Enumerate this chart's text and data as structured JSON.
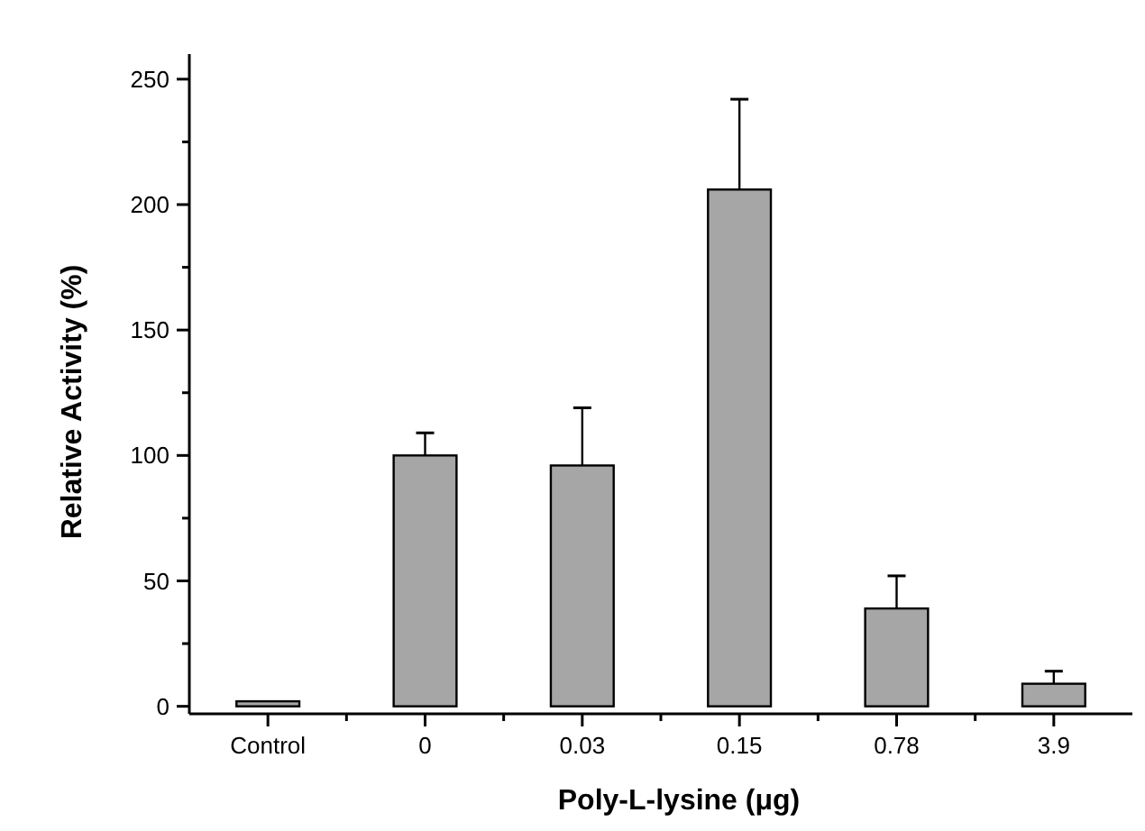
{
  "chart_data": {
    "type": "bar",
    "xlabel": "Poly-L-lysine (μg)",
    "ylabel": "Relative Activity (%)",
    "categories": [
      "Control",
      "0",
      "0.03",
      "0.15",
      "0.78",
      "3.9"
    ],
    "values": [
      2,
      100,
      96,
      206,
      39,
      9
    ],
    "errors": [
      null,
      [
        100,
        109
      ],
      [
        96,
        119
      ],
      [
        206,
        242
      ],
      [
        39,
        52
      ],
      [
        9,
        14
      ]
    ],
    "color": "#a6a6a6",
    "ylim": [
      -3,
      260
    ],
    "yticks": [
      0,
      {
        "value": 25,
        "label": null
      },
      50,
      {
        "value": 75,
        "label": null
      },
      100,
      {
        "value": 125,
        "label": null
      },
      150,
      {
        "value": 175,
        "label": null
      },
      200,
      {
        "value": 225,
        "label": null
      },
      250
    ],
    "grid": false
  }
}
